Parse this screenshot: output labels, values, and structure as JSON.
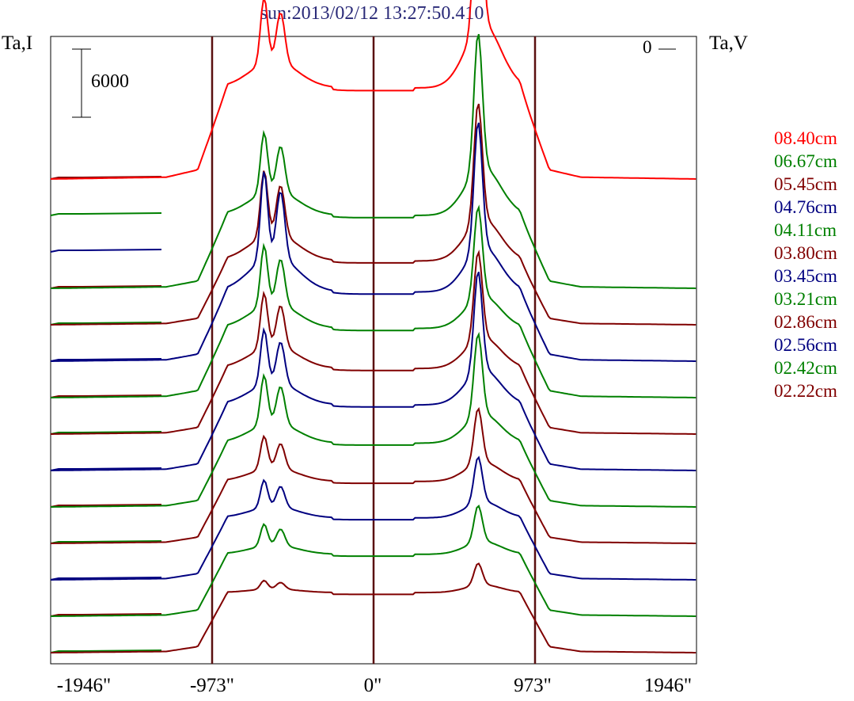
{
  "chart_data": {
    "type": "line",
    "title": "sun:2013/02/12 13:27:50.410",
    "ylabel_left": "Ta,I",
    "ylabel_right": "Ta,V",
    "zero_label": "0",
    "scale_bar_label": "6000",
    "scale_bar_value": 6000,
    "x_tick_labels": [
      "-1946\"",
      "-973\"",
      "0\"",
      "973\"",
      "1946\""
    ],
    "x_tick_values": [
      -1946,
      -973,
      0,
      973,
      1946
    ],
    "xlim": [
      -1946,
      1946
    ],
    "vertical_lines": [
      -973,
      0,
      973
    ],
    "offset_step": 2400,
    "grid": false,
    "legend_position": "right",
    "series": [
      {
        "name": "08.40cm",
        "color": "#ff0000",
        "peak_east": 1.0,
        "peak_west": 0.6,
        "level": 0.5
      },
      {
        "name": "06.67cm",
        "color": "#008000",
        "peak_east": 0.75,
        "peak_west": 0.55,
        "level": 0.4
      },
      {
        "name": "05.45cm",
        "color": "#800000",
        "peak_east": 0.65,
        "peak_west": 0.6,
        "level": 0.35
      },
      {
        "name": "04.76cm",
        "color": "#000080",
        "peak_east": 0.7,
        "peak_west": 0.8,
        "level": 0.38
      },
      {
        "name": "04.11cm",
        "color": "#008000",
        "peak_east": 0.5,
        "peak_west": 0.55,
        "level": 0.38
      },
      {
        "name": "03.80cm",
        "color": "#800000",
        "peak_east": 0.48,
        "peak_west": 0.5,
        "level": 0.36
      },
      {
        "name": "03.45cm",
        "color": "#000080",
        "peak_east": 0.55,
        "peak_west": 0.5,
        "level": 0.36
      },
      {
        "name": "03.21cm",
        "color": "#008000",
        "peak_east": 0.45,
        "peak_west": 0.45,
        "level": 0.35
      },
      {
        "name": "02.86cm",
        "color": "#800000",
        "peak_east": 0.3,
        "peak_west": 0.3,
        "level": 0.34
      },
      {
        "name": "02.56cm",
        "color": "#000080",
        "peak_east": 0.25,
        "peak_west": 0.25,
        "level": 0.34
      },
      {
        "name": "02.42cm",
        "color": "#008000",
        "peak_east": 0.2,
        "peak_west": 0.2,
        "level": 0.34
      },
      {
        "name": "02.22cm",
        "color": "#800000",
        "peak_east": 0.12,
        "peak_west": 0.08,
        "level": 0.33
      }
    ],
    "baseline_colors": [
      "#008000",
      "#800000",
      "#000080",
      "#008000",
      "#800000",
      "#000080",
      "#008000",
      "#800000",
      "#000080",
      "#008000",
      "#800000",
      "#000080",
      "#008000",
      "#800000"
    ]
  }
}
